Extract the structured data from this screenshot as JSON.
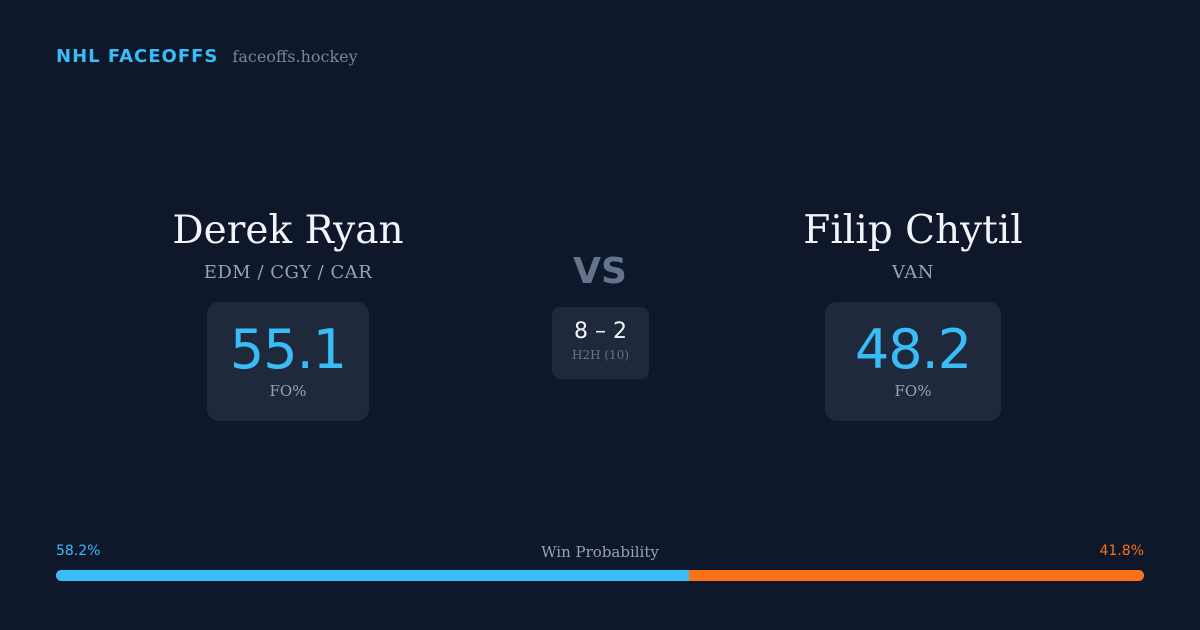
{
  "brand": {
    "name": "NHL FACEOFFS",
    "url": "faceoffs.hockey"
  },
  "colors": {
    "background": "#0f172a",
    "card": "#1e293b",
    "accent_blue": "#38bdf8",
    "accent_orange": "#f97316"
  },
  "player_left": {
    "name": "Derek Ryan",
    "teams": "EDM / CGY / CAR",
    "fo_value": "55.1",
    "fo_label": "FO%"
  },
  "player_right": {
    "name": "Filip Chytil",
    "teams": "VAN",
    "fo_value": "48.2",
    "fo_label": "FO%"
  },
  "matchup": {
    "vs": "VS",
    "h2h_score": "8 – 2",
    "h2h_label": "H2H (10)"
  },
  "win_probability": {
    "title": "Win Probability",
    "left_label": "58.2%",
    "right_label": "41.8%",
    "left_fraction": 0.582,
    "right_fraction": 0.418
  }
}
